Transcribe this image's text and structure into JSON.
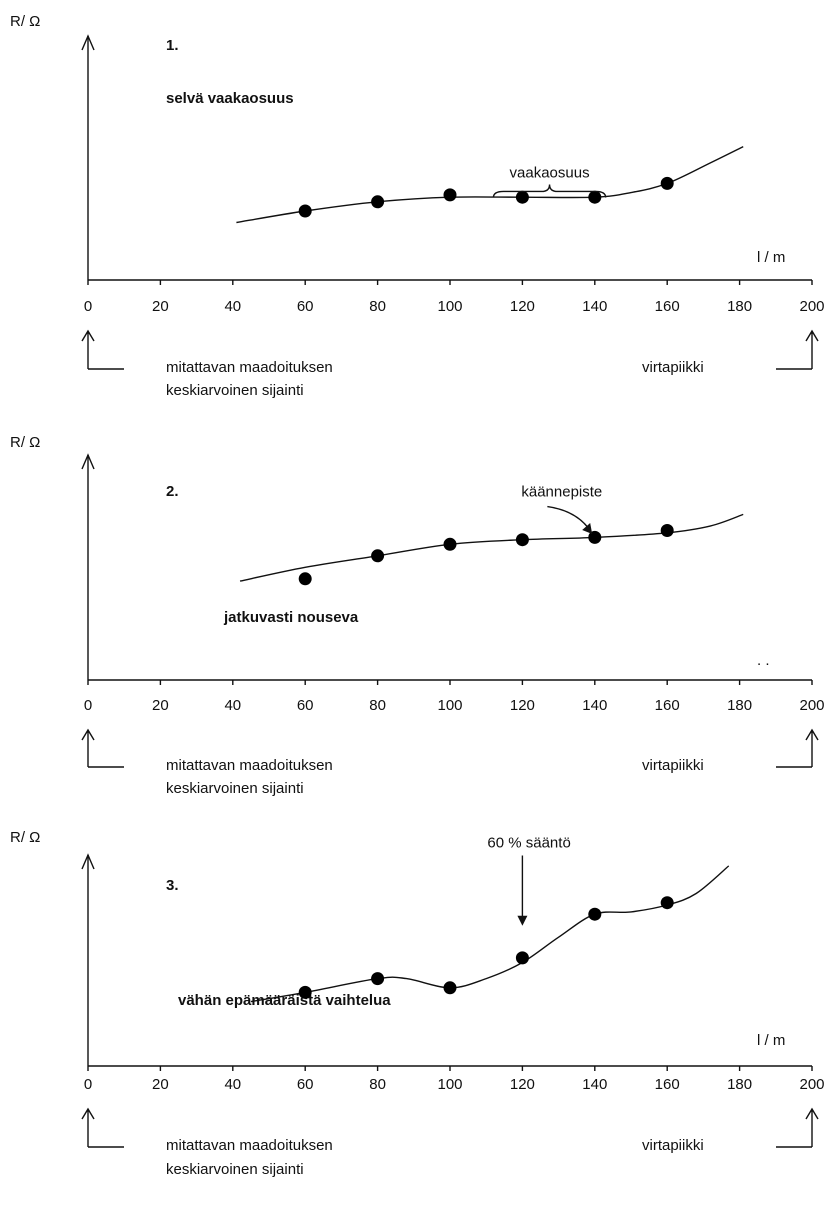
{
  "chart_data": [
    {
      "type": "scatter",
      "number": "1.",
      "ylabel": "R/ Ω",
      "xlabel": "l / m",
      "description": "selvä vaakaosuus",
      "xticks": [
        0,
        20,
        40,
        60,
        80,
        100,
        120,
        140,
        160,
        180,
        200
      ],
      "xlim": [
        0,
        200
      ],
      "points": [
        {
          "x": 60,
          "y": 0.3
        },
        {
          "x": 80,
          "y": 0.34
        },
        {
          "x": 100,
          "y": 0.37
        },
        {
          "x": 120,
          "y": 0.36
        },
        {
          "x": 140,
          "y": 0.36
        },
        {
          "x": 160,
          "y": 0.42
        }
      ],
      "curve": [
        [
          41,
          0.25
        ],
        [
          60,
          0.3
        ],
        [
          80,
          0.34
        ],
        [
          100,
          0.36
        ],
        [
          120,
          0.36
        ],
        [
          140,
          0.36
        ],
        [
          150,
          0.38
        ],
        [
          160,
          0.42
        ],
        [
          172,
          0.51
        ],
        [
          181,
          0.58
        ]
      ],
      "annotation": {
        "text": "vaakaosuus",
        "type": "brace",
        "x_from": 112,
        "x_to": 143,
        "y": 0.385
      },
      "ground_label": [
        "mitattavan maadoituksen",
        "keskiarvoinen sijainti"
      ],
      "current_label": "virtapiikki"
    },
    {
      "type": "scatter",
      "number": "2.",
      "ylabel": "R/ Ω",
      "xlabel": ".  .",
      "description": "jatkuvasti nouseva",
      "xticks": [
        0,
        20,
        40,
        60,
        80,
        100,
        120,
        140,
        160,
        180,
        200
      ],
      "xlim": [
        0,
        200
      ],
      "points": [
        {
          "x": 60,
          "y": 0.44
        },
        {
          "x": 80,
          "y": 0.54
        },
        {
          "x": 100,
          "y": 0.59
        },
        {
          "x": 120,
          "y": 0.61
        },
        {
          "x": 140,
          "y": 0.62
        },
        {
          "x": 160,
          "y": 0.65
        }
      ],
      "curve": [
        [
          42,
          0.43
        ],
        [
          60,
          0.49
        ],
        [
          80,
          0.54
        ],
        [
          100,
          0.59
        ],
        [
          120,
          0.61
        ],
        [
          140,
          0.62
        ],
        [
          160,
          0.64
        ],
        [
          172,
          0.67
        ],
        [
          181,
          0.72
        ]
      ],
      "annotation": {
        "text": "käännepiste",
        "type": "arrow",
        "x_from": 128,
        "y_from": 0.78,
        "x_to": 139,
        "y_to": 0.635
      },
      "ground_label": [
        "mitattavan maadoituksen",
        "keskiarvoinen sijainti"
      ],
      "current_label": "virtapiikki"
    },
    {
      "type": "scatter",
      "number": "3.",
      "ylabel": "R/ Ω",
      "xlabel": "l / m",
      "description": "vähän epämääräistä vaihtelua",
      "xticks": [
        0,
        20,
        40,
        60,
        80,
        100,
        120,
        140,
        160,
        180,
        200
      ],
      "xlim": [
        0,
        200
      ],
      "points": [
        {
          "x": 60,
          "y": 0.32
        },
        {
          "x": 80,
          "y": 0.38
        },
        {
          "x": 100,
          "y": 0.34
        },
        {
          "x": 120,
          "y": 0.47
        },
        {
          "x": 140,
          "y": 0.66
        },
        {
          "x": 160,
          "y": 0.71
        }
      ],
      "curve": [
        [
          45,
          0.28
        ],
        [
          60,
          0.32
        ],
        [
          80,
          0.38
        ],
        [
          88,
          0.38
        ],
        [
          100,
          0.34
        ],
        [
          110,
          0.38
        ],
        [
          120,
          0.45
        ],
        [
          130,
          0.56
        ],
        [
          140,
          0.66
        ],
        [
          150,
          0.67
        ],
        [
          160,
          0.7
        ],
        [
          168,
          0.75
        ],
        [
          177,
          0.87
        ]
      ],
      "annotation": {
        "text": "60 % sääntö",
        "type": "arrow",
        "x_from": 120,
        "y_from": 0.95,
        "x_to": 120,
        "y_to": 0.61
      },
      "ground_label": [
        "mitattavan maadoituksen",
        "keskiarvoinen sijainti"
      ],
      "current_label": "virtapiikki"
    }
  ]
}
